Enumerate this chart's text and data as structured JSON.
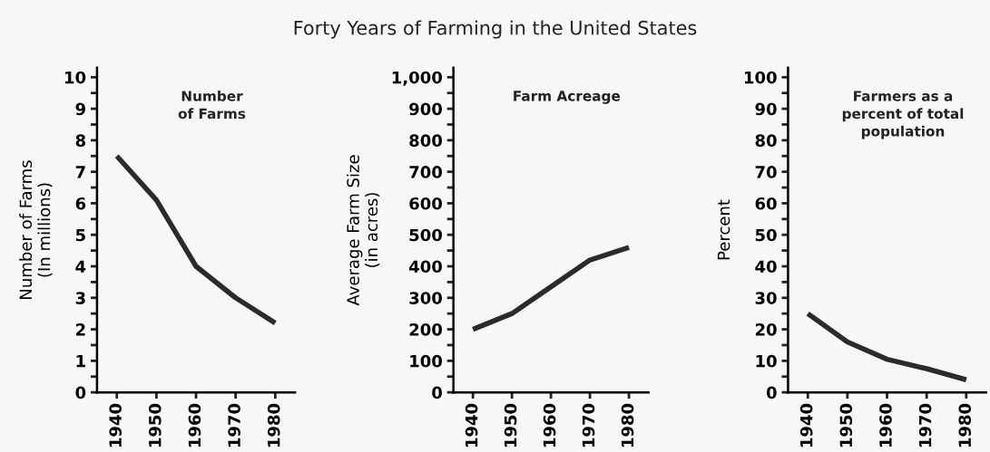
{
  "chart_data": [
    {
      "type": "line",
      "annotations": [
        "Number\nof Farms"
      ],
      "ylabel": "Number of Farms\n(In millions)",
      "categories": [
        "1940",
        "1950",
        "1960",
        "1970",
        "1980"
      ],
      "series": [
        {
          "color": "#2b2b2b",
          "values": [
            7.5,
            6.1,
            4.0,
            3.0,
            2.2
          ]
        }
      ],
      "ylim": [
        0,
        10.3
      ],
      "yticks": [
        0,
        {
          "value": 0.5,
          "label": null
        },
        1,
        {
          "value": 1.5,
          "label": null
        },
        2,
        {
          "value": 2.5,
          "label": null
        },
        3,
        {
          "value": 3.5,
          "label": null
        },
        4,
        {
          "value": 4.5,
          "label": null
        },
        5,
        {
          "value": 5.5,
          "label": null
        },
        6,
        {
          "value": 6.5,
          "label": null
        },
        7,
        {
          "value": 7.5,
          "label": null
        },
        8,
        {
          "value": 8.5,
          "label": null
        },
        9,
        {
          "value": 9.5,
          "label": null
        },
        10
      ],
      "grid": false,
      "legend": false,
      "marker": "none",
      "line_style": "solid"
    },
    {
      "type": "line",
      "title": "Forty Years of Farming in the United States",
      "annotations": [
        "Farm Acreage"
      ],
      "ylabel": "Average Farm Size\n(in acres)",
      "categories": [
        "1940",
        "1950",
        "1960",
        "1970",
        "1980"
      ],
      "series": [
        {
          "color": "#2b2b2b",
          "values": [
            200,
            250,
            335,
            420,
            460
          ]
        }
      ],
      "ylim": [
        0,
        1030
      ],
      "yticks": [
        0,
        {
          "value": 50,
          "label": null
        },
        100,
        {
          "value": 150,
          "label": null
        },
        200,
        {
          "value": 250,
          "label": null
        },
        300,
        {
          "value": 350,
          "label": null
        },
        400,
        {
          "value": 450,
          "label": null
        },
        500,
        {
          "value": 550,
          "label": null
        },
        600,
        {
          "value": 650,
          "label": null
        },
        700,
        {
          "value": 750,
          "label": null
        },
        800,
        {
          "value": 850,
          "label": null
        },
        900,
        {
          "value": 950,
          "label": null
        },
        {
          "value": 1000,
          "label": "1,000"
        }
      ],
      "grid": false,
      "legend": false,
      "marker": "none",
      "line_style": "solid"
    },
    {
      "type": "line",
      "annotations": [
        "Farmers as a\npercent of total\npopulation"
      ],
      "ylabel": "Percent",
      "categories": [
        "1940",
        "1950",
        "1960",
        "1970",
        "1980"
      ],
      "series": [
        {
          "color": "#2b2b2b",
          "values": [
            25,
            16,
            10.5,
            7.5,
            4
          ]
        }
      ],
      "ylim": [
        0,
        103
      ],
      "yticks": [
        0,
        {
          "value": 5,
          "label": null
        },
        10,
        {
          "value": 15,
          "label": null
        },
        20,
        {
          "value": 25,
          "label": null
        },
        30,
        {
          "value": 35,
          "label": null
        },
        40,
        {
          "value": 45,
          "label": null
        },
        50,
        {
          "value": 55,
          "label": null
        },
        60,
        {
          "value": 65,
          "label": null
        },
        70,
        {
          "value": 75,
          "label": null
        },
        80,
        {
          "value": 85,
          "label": null
        },
        90,
        {
          "value": 95,
          "label": null
        },
        100
      ],
      "grid": false,
      "legend": false,
      "marker": "none",
      "line_style": "solid"
    }
  ]
}
